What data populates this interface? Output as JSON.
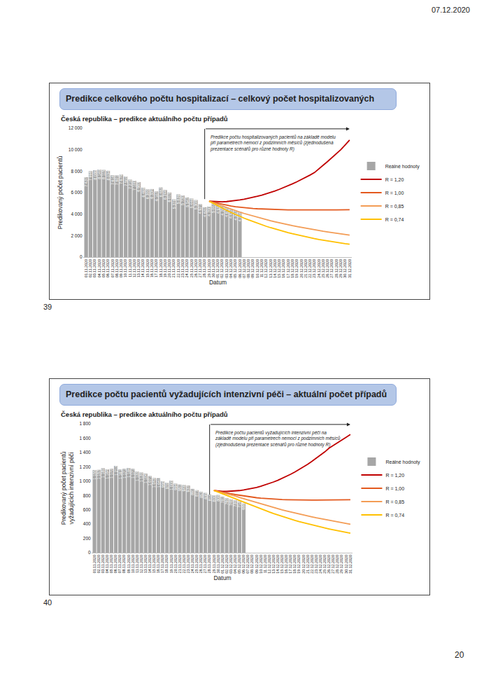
{
  "page": {
    "date": "07.12.2020",
    "number": "20",
    "slide_numbers": [
      "39",
      "40"
    ]
  },
  "chart_data": [
    {
      "type": "bar",
      "title": "Predikce celkového počtu hospitalizací – celkový počet hospitalizovaných",
      "subtitle": "Česká republika – predikce aktuálního počtu případů",
      "y_label": "Predikovaný počet pacientů",
      "x_label": "Datum",
      "annotation": "Predikce počtu hospitalizovaných pacientů na základě modelu při parametrech nemoci z podzimních měsíců (zjednodušená prezentace scénářů pro různé hodnoty R)",
      "categories": [
        "01.11.2020",
        "02.11.2020",
        "03.11.2020",
        "04.11.2020",
        "05.11.2020",
        "06.11.2020",
        "07.11.2020",
        "08.11.2020",
        "09.11.2020",
        "10.11.2020",
        "11.11.2020",
        "12.11.2020",
        "13.11.2020",
        "14.11.2020",
        "15.11.2020",
        "16.11.2020",
        "17.11.2020",
        "18.11.2020",
        "19.11.2020",
        "20.11.2020",
        "21.11.2020",
        "22.11.2020",
        "23.11.2020",
        "24.11.2020",
        "25.11.2020",
        "26.11.2020",
        "27.11.2020",
        "28.11.2020",
        "29.11.2020",
        "30.11.2020",
        "01.12.2020",
        "02.12.2020",
        "03.12.2020",
        "04.12.2020",
        "05.12.2020",
        "06.12.2020",
        "07.12.2020",
        "08.12.2020",
        "09.12.2020",
        "10.12.2020",
        "11.12.2020",
        "12.12.2020",
        "13.12.2020",
        "14.12.2020",
        "15.12.2020",
        "16.12.2020",
        "17.12.2020",
        "18.12.2020",
        "19.12.2020",
        "20.12.2020",
        "21.12.2020",
        "22.12.2020",
        "23.12.2020",
        "24.12.2020",
        "25.12.2020",
        "26.12.2020",
        "27.12.2020",
        "28.12.2020",
        "29.12.2020",
        "30.12.2020",
        "31.12.2020"
      ],
      "series": [
        {
          "name": "Reálné hodnoty",
          "type": "bar",
          "color": "#a6a6a6",
          "values": [
            7437,
            7998,
            8086,
            8149,
            8115,
            8034,
            7616,
            7601,
            7679,
            7503,
            7218,
            7100,
            6983,
            6469,
            6300,
            6334,
            6107,
            6482,
            6244,
            6015,
            5378,
            5839,
            5730,
            5547,
            5446,
            5308,
            4921,
            4637,
            4700,
            5002,
            4938,
            4782,
            4625,
            4483,
            4323,
            4208,
            null,
            null,
            null,
            null,
            null,
            null,
            null,
            null,
            null,
            null,
            null,
            null,
            null,
            null,
            null,
            null,
            null,
            null,
            null,
            null,
            null,
            null,
            null,
            null,
            null
          ],
          "value_labels": [
            "7 437",
            "7 998",
            "8 086",
            "8 149",
            "8 115",
            "8 034",
            "7 616",
            "7 601",
            "7 679",
            "7 503",
            "7 218",
            "7 100",
            "6 983",
            "6 469",
            "6 300",
            "6 334",
            "6 107",
            "6 482",
            "6 244",
            "6 015",
            "5 378",
            "5 839",
            "5 730",
            "5 547",
            "5 446",
            "5 308",
            "4 921",
            "4 637",
            "4 700",
            "5 002",
            "4 938",
            "4 782",
            "4 625",
            "4 483",
            "4 323",
            "4 208",
            null,
            null,
            null,
            null,
            null,
            null,
            null,
            null,
            null,
            null,
            null,
            null,
            null,
            null,
            null,
            null,
            null,
            null,
            null,
            null,
            null,
            null,
            null,
            null,
            null
          ]
        },
        {
          "name": "R = 1,20",
          "type": "line",
          "color": "#c00000",
          "values": [
            null,
            null,
            null,
            null,
            null,
            null,
            null,
            null,
            null,
            null,
            null,
            null,
            null,
            null,
            null,
            null,
            null,
            null,
            null,
            null,
            null,
            null,
            null,
            null,
            null,
            null,
            null,
            null,
            5200,
            5170,
            5150,
            5150,
            5170,
            5210,
            5260,
            5320,
            5390,
            5470,
            5560,
            5660,
            5770,
            5890,
            6020,
            6160,
            6310,
            6470,
            6640,
            6820,
            7010,
            7210,
            7420,
            7640,
            7870,
            8240,
            8560,
            8900,
            9250,
            9600,
            10000,
            10450,
            10900
          ]
        },
        {
          "name": "R = 1,00",
          "type": "line",
          "color": "#e3591e",
          "values": [
            null,
            null,
            null,
            null,
            null,
            null,
            null,
            null,
            null,
            null,
            null,
            null,
            null,
            null,
            null,
            null,
            null,
            null,
            null,
            null,
            null,
            null,
            null,
            null,
            null,
            null,
            null,
            null,
            5200,
            5100,
            5000,
            4900,
            4820,
            4750,
            4690,
            4640,
            4600,
            4560,
            4530,
            4500,
            4480,
            4460,
            4440,
            4430,
            4420,
            4410,
            4400,
            4395,
            4390,
            4385,
            4380,
            4380,
            4380,
            4380,
            4385,
            4390,
            4395,
            4400,
            4405,
            4410,
            4415
          ]
        },
        {
          "name": "R = 0,85",
          "type": "line",
          "color": "#f39c55",
          "values": [
            null,
            null,
            null,
            null,
            null,
            null,
            null,
            null,
            null,
            null,
            null,
            null,
            null,
            null,
            null,
            null,
            null,
            null,
            null,
            null,
            null,
            null,
            null,
            null,
            null,
            null,
            null,
            null,
            5200,
            5050,
            4900,
            4750,
            4600,
            4460,
            4320,
            4190,
            4060,
            3940,
            3820,
            3710,
            3600,
            3490,
            3390,
            3290,
            3190,
            3100,
            3010,
            2920,
            2840,
            2760,
            2680,
            2610,
            2540,
            2470,
            2400,
            2340,
            2280,
            2220,
            2160,
            2100,
            2050
          ]
        },
        {
          "name": "R = 0,74",
          "type": "line",
          "color": "#ffc000",
          "values": [
            null,
            null,
            null,
            null,
            null,
            null,
            null,
            null,
            null,
            null,
            null,
            null,
            null,
            null,
            null,
            null,
            null,
            null,
            null,
            null,
            null,
            null,
            null,
            null,
            null,
            null,
            null,
            null,
            5200,
            4980,
            4760,
            4550,
            4350,
            4160,
            3970,
            3790,
            3620,
            3460,
            3300,
            3150,
            3010,
            2870,
            2740,
            2610,
            2490,
            2380,
            2270,
            2170,
            2070,
            1980,
            1890,
            1800,
            1720,
            1640,
            1570,
            1500,
            1430,
            1370,
            1310,
            1250,
            1200
          ]
        }
      ],
      "ylim": [
        0,
        12000
      ],
      "yticks": [
        0,
        {
          "value": 2000,
          "label": "2 000"
        },
        {
          "value": 4000,
          "label": "4 000"
        },
        {
          "value": 6000,
          "label": "6 000"
        },
        {
          "value": 8000,
          "label": "8 000"
        },
        {
          "value": 10000,
          "label": "10 000"
        },
        {
          "value": 12000,
          "label": "12 000"
        }
      ],
      "grid": false,
      "legend": "right",
      "data_labels": true
    },
    {
      "type": "bar",
      "title": "Predikce počtu pacientů vyžadujících intenzivní péči – aktuální počet případů",
      "subtitle": "Česká republika – predikce aktuálního počtu případů",
      "y_label": "Predikovaný počet pacientů\nvyžadujících intenzivní péči",
      "x_label": "Datum",
      "annotation": "Predikce počtu pacientů vyžadujících intenzivní péči na základě modelu při parametrech nemoci z podzimních měsíců (zjednodušená prezentace scénářů pro různé hodnoty R)",
      "categories": [
        "01.11.2020",
        "02.11.2020",
        "03.11.2020",
        "04.11.2020",
        "05.11.2020",
        "06.11.2020",
        "07.11.2020",
        "08.11.2020",
        "09.11.2020",
        "10.11.2020",
        "11.11.2020",
        "12.11.2020",
        "13.11.2020",
        "14.11.2020",
        "15.11.2020",
        "16.11.2020",
        "17.11.2020",
        "18.11.2020",
        "19.11.2020",
        "20.11.2020",
        "21.11.2020",
        "22.11.2020",
        "23.11.2020",
        "24.11.2020",
        "25.11.2020",
        "26.11.2020",
        "27.11.2020",
        "28.11.2020",
        "29.11.2020",
        "30.11.2020",
        "01.12.2020",
        "02.12.2020",
        "03.12.2020",
        "04.12.2020",
        "05.12.2020",
        "06.12.2020",
        "07.12.2020",
        "08.12.2020",
        "09.12.2020",
        "10.12.2020",
        "11.12.2020",
        "12.12.2020",
        "13.12.2020",
        "14.12.2020",
        "15.12.2020",
        "16.12.2020",
        "17.12.2020",
        "18.12.2020",
        "19.12.2020",
        "20.12.2020",
        "21.12.2020",
        "22.12.2020",
        "23.12.2020",
        "24.12.2020",
        "25.12.2020",
        "26.12.2020",
        "27.12.2020",
        "28.12.2020",
        "29.12.2020",
        "30.12.2020",
        "31.12.2020"
      ],
      "series": [
        {
          "name": "Reálné hodnoty",
          "type": "bar",
          "color": "#a6a6a6",
          "values": [
            1155,
            1157,
            1180,
            1164,
            1172,
            1213,
            1161,
            1171,
            1184,
            1171,
            1133,
            1120,
            1104,
            1071,
            1043,
            1041,
            998,
            978,
            1008,
            964,
            951,
            946,
            937,
            891,
            873,
            853,
            835,
            812,
            800,
            806,
            781,
            760,
            745,
            730,
            718,
            688,
            null,
            null,
            null,
            null,
            null,
            null,
            null,
            null,
            null,
            null,
            null,
            null,
            null,
            null,
            null,
            null,
            null,
            null,
            null,
            null,
            null,
            null,
            null,
            null,
            null
          ],
          "value_labels": [
            "1 155",
            "1 157",
            "1 180",
            "1 164",
            "1 172",
            "1 213",
            "1 161",
            "1 171",
            "1 184",
            "1 171",
            "1 133",
            "1 120",
            "1 104",
            "1 071",
            "1 043",
            "1 041",
            "998",
            "978",
            "1 008",
            "964",
            "951",
            "946",
            "937",
            "891",
            "873",
            "853",
            "835",
            "812",
            "800",
            "806",
            "781",
            "760",
            "745",
            "730",
            "718",
            "688",
            null,
            null,
            null,
            null,
            null,
            null,
            null,
            null,
            null,
            null,
            null,
            null,
            null,
            null,
            null,
            null,
            null,
            null,
            null,
            null,
            null,
            null,
            null,
            null,
            null
          ]
        },
        {
          "name": "R = 1,20",
          "type": "line",
          "color": "#c00000",
          "values": [
            null,
            null,
            null,
            null,
            null,
            null,
            null,
            null,
            null,
            null,
            null,
            null,
            null,
            null,
            null,
            null,
            null,
            null,
            null,
            null,
            null,
            null,
            null,
            null,
            null,
            null,
            null,
            null,
            870,
            862,
            858,
            856,
            858,
            862,
            868,
            876,
            886,
            898,
            912,
            928,
            946,
            966,
            988,
            1012,
            1038,
            1066,
            1096,
            1128,
            1162,
            1198,
            1236,
            1276,
            1318,
            1362,
            1408,
            1460,
            1500,
            1540,
            1575,
            1612,
            1650
          ]
        },
        {
          "name": "R = 1,00",
          "type": "line",
          "color": "#e3591e",
          "values": [
            null,
            null,
            null,
            null,
            null,
            null,
            null,
            null,
            null,
            null,
            null,
            null,
            null,
            null,
            null,
            null,
            null,
            null,
            null,
            null,
            null,
            null,
            null,
            null,
            null,
            null,
            null,
            null,
            870,
            860,
            848,
            836,
            824,
            812,
            802,
            792,
            783,
            775,
            768,
            762,
            757,
            752,
            748,
            745,
            742,
            740,
            738,
            737,
            736,
            735,
            735,
            735,
            735,
            735,
            736,
            736,
            737,
            737,
            738,
            738,
            739
          ]
        },
        {
          "name": "R = 0,85",
          "type": "line",
          "color": "#f39c55",
          "values": [
            null,
            null,
            null,
            null,
            null,
            null,
            null,
            null,
            null,
            null,
            null,
            null,
            null,
            null,
            null,
            null,
            null,
            null,
            null,
            null,
            null,
            null,
            null,
            null,
            null,
            null,
            null,
            null,
            870,
            855,
            840,
            825,
            808,
            790,
            772,
            754,
            736,
            718,
            700,
            682,
            665,
            648,
            631,
            615,
            599,
            584,
            569,
            554,
            540,
            526,
            513,
            500,
            487,
            475,
            463,
            451,
            440,
            429,
            418,
            408,
            398
          ]
        },
        {
          "name": "R = 0,74",
          "type": "line",
          "color": "#ffc000",
          "values": [
            null,
            null,
            null,
            null,
            null,
            null,
            null,
            null,
            null,
            null,
            null,
            null,
            null,
            null,
            null,
            null,
            null,
            null,
            null,
            null,
            null,
            null,
            null,
            null,
            null,
            null,
            null,
            null,
            870,
            848,
            825,
            802,
            778,
            754,
            730,
            706,
            682,
            658,
            635,
            612,
            590,
            568,
            547,
            527,
            507,
            488,
            470,
            452,
            435,
            419,
            403,
            388,
            373,
            359,
            345,
            332,
            319,
            307,
            295,
            284,
            273
          ]
        }
      ],
      "ylim": [
        0,
        1800
      ],
      "yticks": [
        0,
        200,
        400,
        600,
        800,
        {
          "value": 1000,
          "label": "1 000"
        },
        {
          "value": 1200,
          "label": "1 200"
        },
        {
          "value": 1400,
          "label": "1 400"
        },
        {
          "value": 1600,
          "label": "1 600"
        },
        {
          "value": 1800,
          "label": "1 800"
        }
      ],
      "grid": false,
      "legend": "right",
      "data_labels": true
    }
  ]
}
